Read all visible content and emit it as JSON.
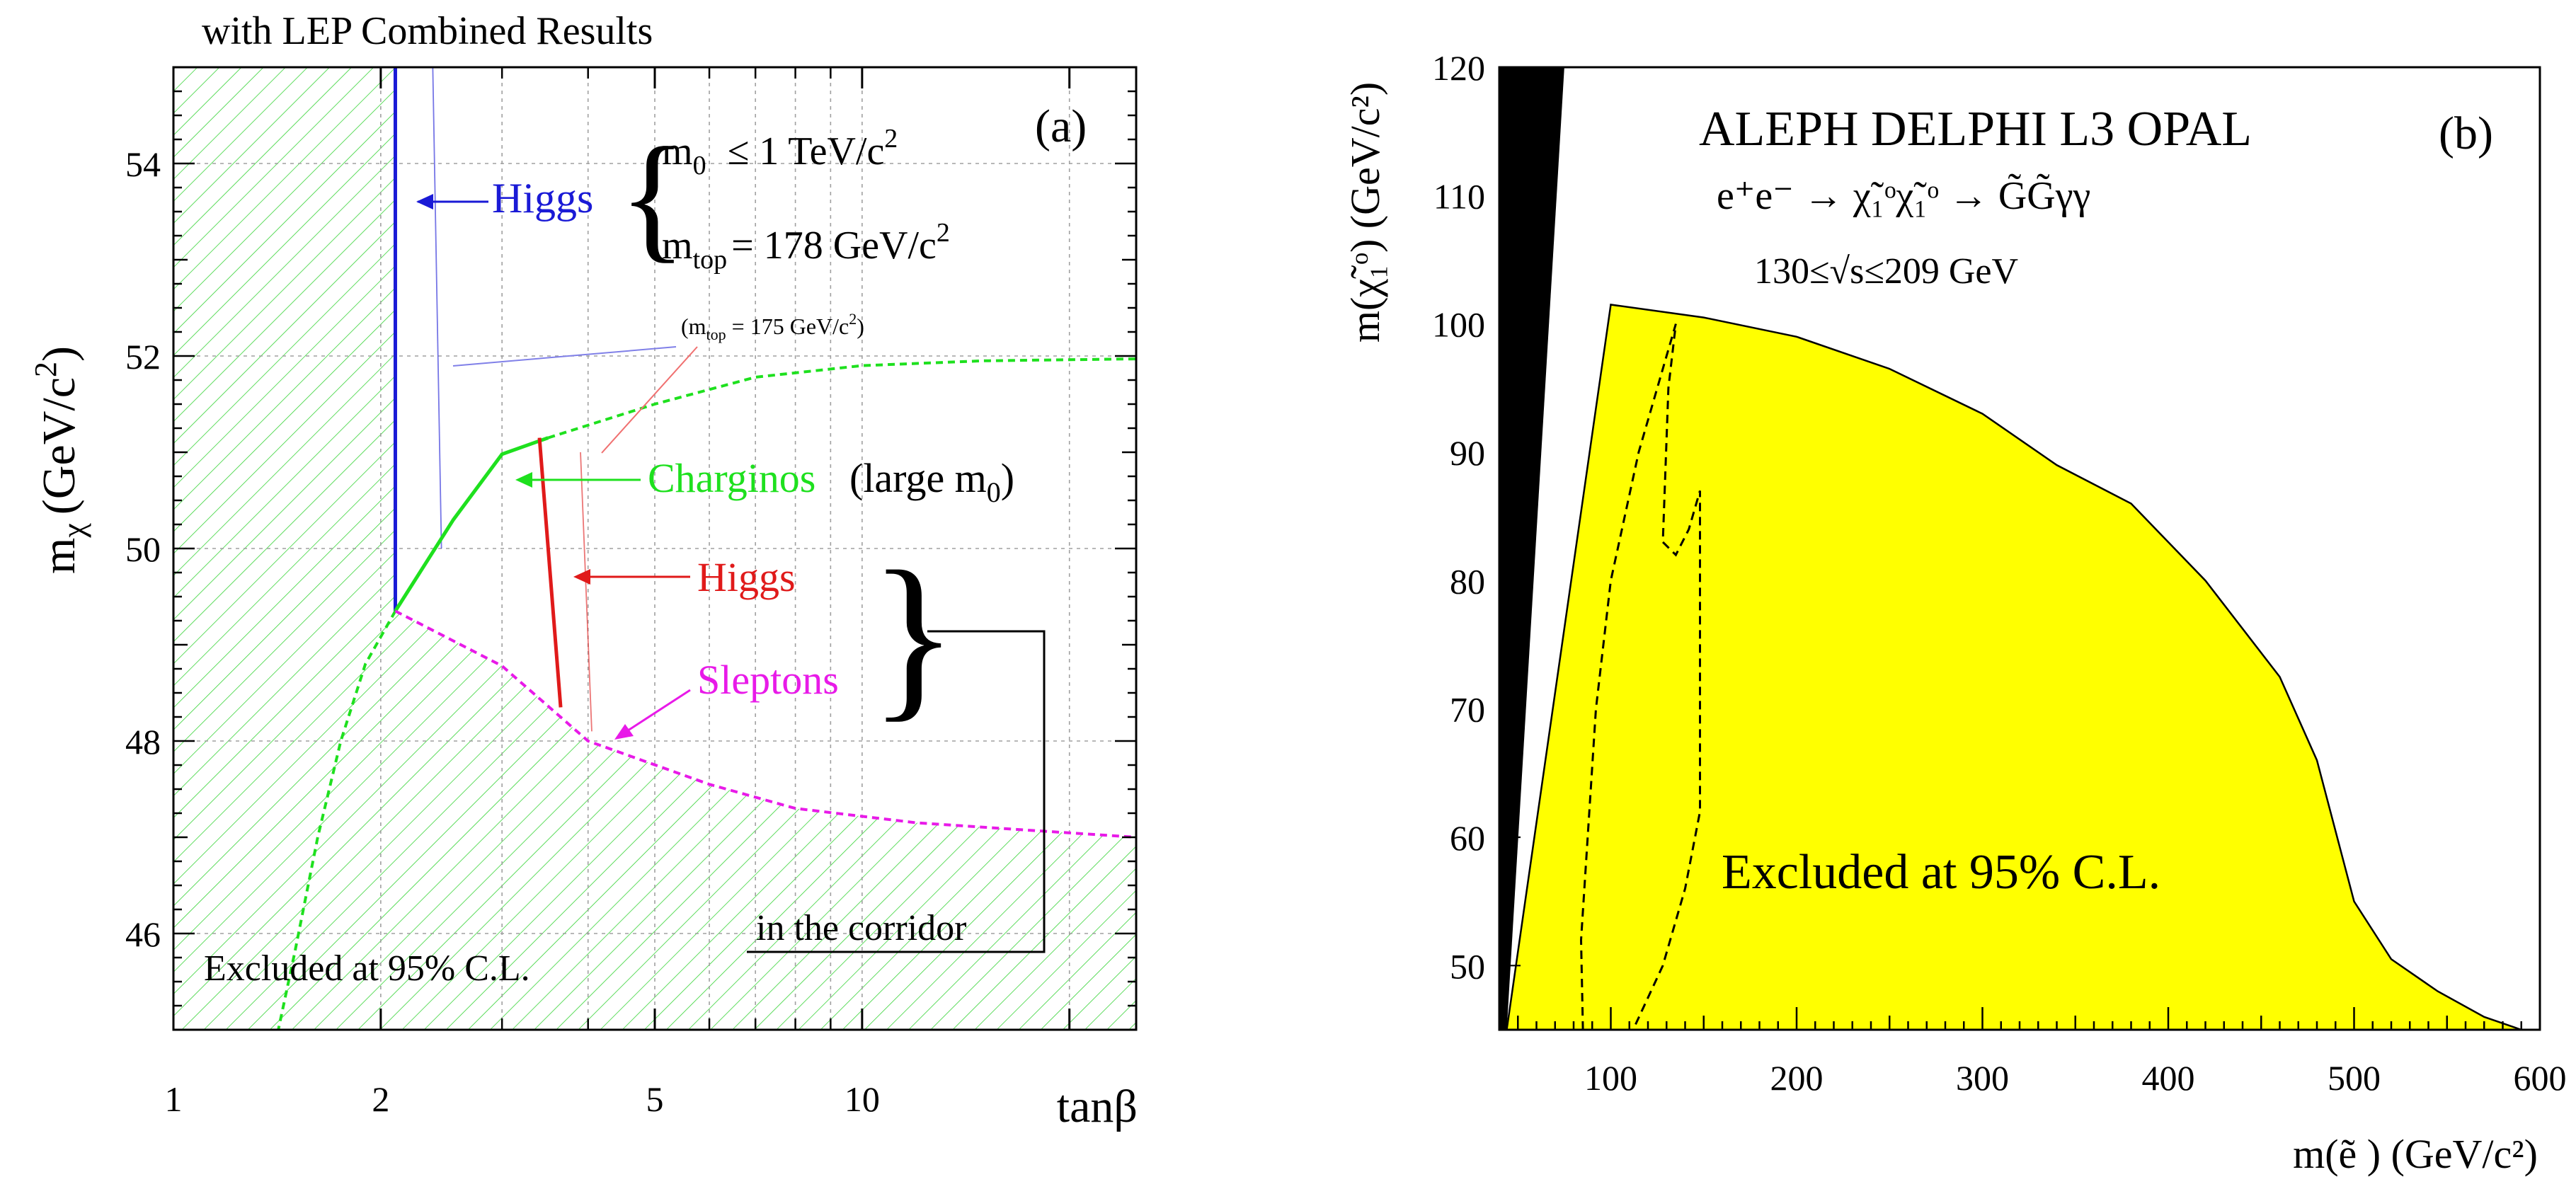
{
  "colors": {
    "excluded_hatch": "#37d437",
    "higgs_blue": "#1a1ad6",
    "charginos_green": "#1ee01e",
    "higgs_red": "#e01a1a",
    "sleptons_magenta": "#e81ae8",
    "excluded_fill_b": "#ffff00",
    "black": "#000000"
  },
  "chart_data": [
    {
      "type": "line",
      "panel_label": "(a)",
      "title": "with LEP Combined Results",
      "xlabel": "tanβ",
      "ylabel_main": "m",
      "ylabel_sub": "χ",
      "ylabel_unit": "(GeV/c",
      "ylabel_unit_sup": "2",
      "ylabel_unit_close": ")",
      "x_scale": "log",
      "xlim": [
        1,
        25
      ],
      "ylim": [
        45,
        55
      ],
      "x_ticks": [
        {
          "value": 1,
          "label": "1"
        },
        {
          "value": 2,
          "label": "2"
        },
        {
          "value": 5,
          "label": "5"
        },
        {
          "value": 10,
          "label": "10"
        }
      ],
      "y_ticks": [
        {
          "value": 46,
          "label": "46"
        },
        {
          "value": 48,
          "label": "48"
        },
        {
          "value": 50,
          "label": "50"
        },
        {
          "value": 52,
          "label": "52"
        },
        {
          "value": 54,
          "label": "54"
        }
      ],
      "grid": true,
      "series": [
        {
          "name": "higgs_blue",
          "label": "Higgs",
          "color_key": "higgs_blue",
          "style": "solid",
          "points": [
            [
              2.1,
              49.35
            ],
            [
              2.1,
              55
            ]
          ]
        },
        {
          "name": "higgs_blue_mtop175",
          "label": "",
          "color_key": "higgs_blue",
          "style": "thin",
          "points": [
            [
              2.45,
              50.0
            ],
            [
              2.38,
              55
            ]
          ]
        },
        {
          "name": "charginos_solid",
          "label": "Charginos",
          "color_key": "charginos_green",
          "style": "solid",
          "points": [
            [
              2.1,
              49.35
            ],
            [
              2.55,
              50.3
            ],
            [
              3.0,
              50.98
            ],
            [
              3.5,
              51.15
            ]
          ]
        },
        {
          "name": "charginos_dashed_upper",
          "label": "",
          "color_key": "charginos_green",
          "style": "dashed",
          "points": [
            [
              3.5,
              51.15
            ],
            [
              5,
              51.5
            ],
            [
              7,
              51.78
            ],
            [
              10,
              51.9
            ],
            [
              15,
              51.95
            ],
            [
              25,
              51.97
            ]
          ]
        },
        {
          "name": "charginos_dashed_lower",
          "label": "",
          "color_key": "charginos_green",
          "style": "dashed",
          "points": [
            [
              2.1,
              49.35
            ],
            [
              1.9,
              48.8
            ],
            [
              1.75,
              48.0
            ],
            [
              1.62,
              47.0
            ],
            [
              1.5,
              45.8
            ],
            [
              1.42,
              45.0
            ]
          ]
        },
        {
          "name": "higgs_red",
          "label": "Higgs",
          "color_key": "higgs_red",
          "style": "solid",
          "points": [
            [
              3.4,
              51.15
            ],
            [
              3.65,
              48.35
            ]
          ]
        },
        {
          "name": "higgs_red_mtop175",
          "label": "",
          "color_key": "higgs_red",
          "style": "thin",
          "points": [
            [
              3.9,
              51.0
            ],
            [
              4.05,
              48.1
            ]
          ]
        },
        {
          "name": "sleptons",
          "label": "Sleptons",
          "color_key": "sleptons_magenta",
          "style": "dashed",
          "points": [
            [
              2.1,
              49.35
            ],
            [
              3.0,
              48.78
            ],
            [
              4.0,
              48.0
            ],
            [
              6,
              47.55
            ],
            [
              8,
              47.3
            ],
            [
              12,
              47.15
            ],
            [
              25,
              47.0
            ]
          ]
        }
      ],
      "annotations": {
        "higgs_blue_label": "Higgs",
        "m0_main": "m",
        "m0_sub": "0",
        "m0_value": "≤ 1 TeV/c",
        "m0_sup": "2",
        "mtop_main": "m",
        "mtop_sub": "top",
        "mtop_value": "= 178 GeV/c",
        "mtop_sup": "2",
        "mtop175_open": "(m",
        "mtop175_sub": "top",
        "mtop175_value": " = 175 GeV/c",
        "mtop175_sup": "2",
        "mtop175_close": ")",
        "charginos_label": "Charginos",
        "charginos_large_open": "(large m",
        "charginos_large_sub": "0",
        "charginos_large_close": ")",
        "higgs_red_label": "Higgs",
        "sleptons_label": "Sleptons",
        "brace_symbol": "}",
        "corridor_label": "in the corridor",
        "excluded_label": "Excluded at 95% C.L."
      }
    },
    {
      "type": "area",
      "panel_label": "(b)",
      "title": "ALEPH DELPHI L3 OPAL",
      "reaction": "e⁺e⁻ → χ̃₁ᵒχ̃₁ᵒ → G̃G̃γγ",
      "energy_range": "130≤√s≤209 GeV",
      "xlabel": "m(ẽ ) (GeV/c²)",
      "ylabel": "m(χ̃₁ᵒ) (GeV/c²)",
      "xlim": [
        40,
        600
      ],
      "ylim": [
        45,
        120
      ],
      "x_ticks": [
        100,
        200,
        300,
        400,
        500,
        600
      ],
      "y_ticks": [
        50,
        60,
        70,
        80,
        90,
        100,
        110,
        120
      ],
      "excluded_label": "Excluded at 95% C.L.",
      "excluded_boundary": [
        [
          44,
          45
        ],
        [
          100,
          101.5
        ],
        [
          150,
          100.5
        ],
        [
          200,
          99.0
        ],
        [
          250,
          96.5
        ],
        [
          300,
          93.0
        ],
        [
          340,
          89.0
        ],
        [
          380,
          86.0
        ],
        [
          420,
          80.0
        ],
        [
          460,
          72.5
        ],
        [
          480,
          66.0
        ],
        [
          500,
          55.0
        ],
        [
          520,
          50.5
        ],
        [
          545,
          48.0
        ],
        [
          570,
          46.0
        ],
        [
          590,
          45.0
        ],
        [
          600,
          45.0
        ]
      ],
      "kinematic_region": [
        [
          40,
          45
        ],
        [
          40,
          120
        ],
        [
          75,
          120
        ],
        [
          44,
          45
        ]
      ],
      "dashed_contours": [
        [
          [
            85,
            45
          ],
          [
            84,
            52
          ],
          [
            92,
            70
          ],
          [
            100,
            80
          ],
          [
            115,
            90
          ],
          [
            135,
            100
          ],
          [
            131,
            95
          ],
          [
            128,
            83
          ],
          [
            135,
            82
          ],
          [
            142,
            84
          ],
          [
            148,
            87
          ],
          [
            148,
            62
          ],
          [
            140,
            56
          ],
          [
            128,
            50
          ],
          [
            112,
            45
          ]
        ]
      ]
    }
  ]
}
